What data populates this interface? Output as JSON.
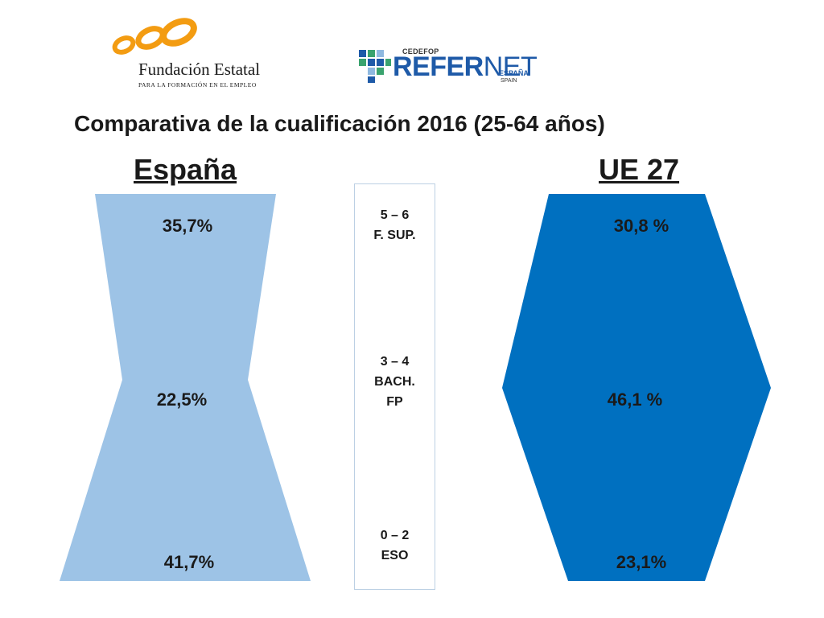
{
  "logos": {
    "fundae": {
      "name": "Fundación Estatal",
      "tagline": "PARA LA FORMACIÓN EN EL EMPLEO"
    },
    "refernet": {
      "top": "CEDEFOP",
      "brand_bold": "REFER",
      "brand_light": "NET",
      "sub": "ESPAÑA",
      "country": "SPAIN"
    }
  },
  "title": "Comparativa de la cualificación 2016 (25-64 años)",
  "levels": [
    {
      "lines": [
        "5 – 6",
        "F. SUP."
      ]
    },
    {
      "lines": [
        "3 – 4",
        "BACH.",
        "FP"
      ]
    },
    {
      "lines": [
        "0 – 2",
        "ESO"
      ]
    }
  ],
  "chart_data": {
    "type": "shape-comparison",
    "categories": [
      "5 – 6 F. SUP.",
      "3 – 4 BACH. FP",
      "0 – 2 ESO"
    ],
    "series": [
      {
        "name": "España",
        "values": [
          35.7,
          22.5,
          41.7
        ],
        "labels": [
          "35,7%",
          "22,5%",
          "41,7%"
        ],
        "color": "#9dc3e6"
      },
      {
        "name": "UE 27",
        "values": [
          30.8,
          46.1,
          23.1
        ],
        "labels": [
          "30,8 %",
          "46,1 %",
          "23,1%"
        ],
        "color": "#0070c0"
      }
    ]
  },
  "colors": {
    "fundae_orange": "#f39c12",
    "refernet_blue": "#1e5aa8",
    "refernet_green": "#3aa36e"
  }
}
